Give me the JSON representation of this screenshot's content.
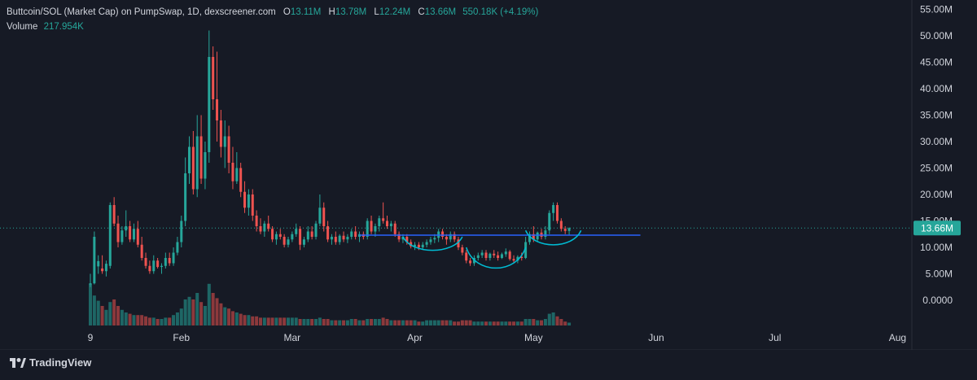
{
  "legend": {
    "title": "Buttcoin/SOL (Market Cap) on PumpSwap, 1D, dexscreener.com",
    "o_label": "O",
    "o_value": "13.11M",
    "h_label": "H",
    "h_value": "13.78M",
    "l_label": "L",
    "l_value": "12.24M",
    "c_label": "C",
    "c_value": "13.66M",
    "change": "550.18K (+4.19%)",
    "volume_label": "Volume",
    "volume_value": "217.954K"
  },
  "price_axis": {
    "ticks": [
      "55.00M",
      "50.00M",
      "45.00M",
      "40.00M",
      "35.00M",
      "30.00M",
      "25.00M",
      "20.00M",
      "15.00M",
      "10.00M",
      "5.00M",
      "0.0000"
    ],
    "tick_values": [
      55,
      50,
      45,
      40,
      35,
      30,
      25,
      20,
      15,
      10,
      5,
      0
    ],
    "current_label": "13.66M",
    "current_value": 13.66
  },
  "time_axis": {
    "labels": [
      "9",
      "Feb",
      "Mar",
      "Apr",
      "May",
      "Jun",
      "Jul",
      "Aug"
    ],
    "label_days": [
      0,
      23,
      51,
      82,
      112,
      143,
      173,
      204
    ]
  },
  "brand": {
    "name": "TradingView"
  },
  "colors": {
    "up": "#26a69a",
    "down": "#ef5350",
    "background": "#161a25",
    "hline": "#2962ff",
    "arc": "#00bcd4",
    "text": "#d1d4dc"
  },
  "chart_data": {
    "type": "candlestick",
    "ylim": [
      0,
      55
    ],
    "unit": "M",
    "horizontal_line": {
      "value": 12.3,
      "from_day": 68,
      "to_day": 139
    },
    "arcs": [
      {
        "from_day": 79,
        "to_day": 94,
        "top": 12.0,
        "bottom": 9.2
      },
      {
        "from_day": 95,
        "to_day": 110,
        "top": 10.0,
        "bottom": 5.4
      },
      {
        "from_day": 110,
        "to_day": 124,
        "top": 13.2,
        "bottom": 10.2
      }
    ],
    "candles": [
      [
        3.0,
        5.0,
        2.5,
        3.2,
        3.2
      ],
      [
        3.2,
        13,
        3.0,
        12.0,
        2.3
      ],
      [
        6.4,
        8.5,
        5.0,
        7.4,
        1.9
      ],
      [
        6.0,
        8.5,
        5.0,
        5.5,
        1.5
      ],
      [
        5.5,
        7.5,
        4.5,
        6.9,
        1.2
      ],
      [
        6.5,
        18.5,
        6.0,
        18.0,
        1.8
      ],
      [
        18.0,
        19.5,
        14.0,
        14.5,
        2.0
      ],
      [
        14.5,
        16,
        10.0,
        11.0,
        1.5
      ],
      [
        11.0,
        14,
        10.5,
        13.2,
        1.2
      ],
      [
        13.2,
        17,
        12.0,
        14.0,
        1.0
      ],
      [
        14.0,
        15,
        11.0,
        11.5,
        0.9
      ],
      [
        11.5,
        14.5,
        11.0,
        13.5,
        0.8
      ],
      [
        13.5,
        15,
        10.0,
        10.5,
        0.8
      ],
      [
        10.5,
        12,
        7.5,
        8.0,
        0.8
      ],
      [
        8.0,
        9,
        6.0,
        6.5,
        0.7
      ],
      [
        6.5,
        7.5,
        5.0,
        5.5,
        0.6
      ],
      [
        5.5,
        8.5,
        5.0,
        7.5,
        0.6
      ],
      [
        7.5,
        8,
        6.0,
        6.3,
        0.5
      ],
      [
        6.3,
        7,
        5.0,
        6.5,
        0.5
      ],
      [
        6.5,
        9,
        6.0,
        8.0,
        0.6
      ],
      [
        8.0,
        9,
        6.5,
        7.0,
        0.6
      ],
      [
        7.0,
        10,
        6.5,
        9.0,
        0.8
      ],
      [
        9.0,
        12,
        8.5,
        11.0,
        1.0
      ],
      [
        11.0,
        16,
        10.0,
        15.0,
        1.3
      ],
      [
        15.0,
        27,
        14.0,
        24.0,
        2.0
      ],
      [
        24.0,
        31,
        22.0,
        29.0,
        2.2
      ],
      [
        29.0,
        32,
        20.0,
        21.0,
        2.0
      ],
      [
        21.0,
        35,
        19.5,
        31.0,
        2.5
      ],
      [
        31.0,
        35,
        22.0,
        23.0,
        1.8
      ],
      [
        23.0,
        30,
        21.0,
        28.0,
        1.5
      ],
      [
        28.0,
        51,
        26.0,
        46.0,
        3.2
      ],
      [
        46.0,
        48,
        36.0,
        38.0,
        2.5
      ],
      [
        38.0,
        47,
        30.0,
        34.0,
        2.1
      ],
      [
        34.0,
        36,
        27.0,
        29.0,
        1.7
      ],
      [
        29.0,
        34,
        25.0,
        31.0,
        1.4
      ],
      [
        31.0,
        33,
        24.0,
        26.0,
        1.3
      ],
      [
        26.0,
        29,
        21.0,
        22.5,
        1.1
      ],
      [
        22.5,
        28,
        22.0,
        25.0,
        1.0
      ],
      [
        25.0,
        26,
        19.5,
        20.5,
        0.9
      ],
      [
        20.5,
        22.5,
        16.5,
        17.5,
        0.8
      ],
      [
        17.5,
        21,
        16.0,
        20.0,
        0.8
      ],
      [
        20.0,
        21,
        15.0,
        16.0,
        0.7
      ],
      [
        16.0,
        17,
        13.0,
        14.0,
        0.7
      ],
      [
        14.0,
        15.5,
        12.5,
        13.0,
        0.6
      ],
      [
        13.0,
        15,
        12.0,
        14.5,
        0.6
      ],
      [
        14.5,
        16,
        13.0,
        13.5,
        0.6
      ],
      [
        13.5,
        14,
        11.0,
        11.5,
        0.6
      ],
      [
        11.5,
        13,
        10.5,
        12.5,
        0.6
      ],
      [
        12.5,
        13.5,
        11.5,
        12.0,
        0.6
      ],
      [
        12.0,
        12.5,
        10.0,
        10.5,
        0.6
      ],
      [
        10.5,
        12,
        10.0,
        11.5,
        0.6
      ],
      [
        11.5,
        13,
        11.0,
        12.5,
        0.6
      ],
      [
        12.5,
        14.5,
        12.0,
        13.5,
        0.6
      ],
      [
        13.5,
        14,
        9.5,
        10.5,
        0.5
      ],
      [
        10.5,
        12,
        10.0,
        11.5,
        0.5
      ],
      [
        11.5,
        14,
        11.0,
        13.0,
        0.5
      ],
      [
        13.0,
        14,
        11.5,
        12.0,
        0.5
      ],
      [
        12.0,
        15,
        11.5,
        14.5,
        0.5
      ],
      [
        14.5,
        20,
        14.0,
        17.5,
        0.6
      ],
      [
        17.5,
        18.5,
        13.0,
        14.0,
        0.5
      ],
      [
        14.0,
        15,
        11.0,
        11.5,
        0.5
      ],
      [
        11.5,
        12.5,
        10.5,
        12.0,
        0.4
      ],
      [
        12.0,
        13,
        10.5,
        11.0,
        0.4
      ],
      [
        11.0,
        12.5,
        10.5,
        12.2,
        0.4
      ],
      [
        12.2,
        13,
        11.0,
        11.5,
        0.4
      ],
      [
        11.5,
        12.5,
        10.8,
        12.0,
        0.4
      ],
      [
        12.0,
        13.5,
        11.5,
        13.0,
        0.5
      ],
      [
        13.0,
        14,
        11.5,
        12.0,
        0.5
      ],
      [
        12.0,
        13,
        11.0,
        12.5,
        0.4
      ],
      [
        12.5,
        13,
        11.5,
        12.0,
        0.4
      ],
      [
        12.0,
        15.5,
        11.5,
        15.0,
        0.5
      ],
      [
        15.0,
        16,
        12.5,
        13.0,
        0.5
      ],
      [
        13.0,
        14.5,
        12.0,
        14.0,
        0.5
      ],
      [
        14.0,
        16,
        13.0,
        15.5,
        0.5
      ],
      [
        15.5,
        18.5,
        14.5,
        15.0,
        0.6
      ],
      [
        15.0,
        16,
        13.5,
        14.0,
        0.5
      ],
      [
        14.0,
        15,
        13.0,
        14.5,
        0.4
      ],
      [
        14.5,
        15,
        12.0,
        12.5,
        0.4
      ],
      [
        12.5,
        13,
        11.0,
        11.5,
        0.4
      ],
      [
        11.5,
        12.5,
        10.8,
        12.0,
        0.4
      ],
      [
        12.0,
        12.5,
        10.5,
        11.0,
        0.4
      ],
      [
        11.0,
        11.5,
        9.8,
        10.2,
        0.4
      ],
      [
        10.2,
        11,
        9.5,
        10.5,
        0.4
      ],
      [
        10.5,
        11,
        9.5,
        10.0,
        0.3
      ],
      [
        10.0,
        11,
        9.5,
        10.5,
        0.3
      ],
      [
        10.5,
        11.5,
        10.0,
        11.0,
        0.4
      ],
      [
        11.0,
        12,
        10.5,
        11.5,
        0.4
      ],
      [
        11.5,
        12.5,
        10.8,
        11.8,
        0.4
      ],
      [
        11.8,
        13.5,
        11.0,
        13.0,
        0.4
      ],
      [
        13.0,
        13.5,
        11.5,
        12.0,
        0.4
      ],
      [
        12.0,
        12.5,
        10.5,
        11.5,
        0.4
      ],
      [
        11.5,
        13,
        11.0,
        12.5,
        0.4
      ],
      [
        12.5,
        13,
        11.0,
        11.5,
        0.3
      ],
      [
        11.5,
        12,
        9.5,
        10.0,
        0.3
      ],
      [
        10.0,
        10.5,
        8.5,
        9.0,
        0.4
      ],
      [
        9.0,
        9.5,
        7.0,
        7.5,
        0.4
      ],
      [
        7.5,
        8,
        6.5,
        7.0,
        0.4
      ],
      [
        7.0,
        8.5,
        6.5,
        8.0,
        0.3
      ],
      [
        8.0,
        9,
        7.5,
        8.5,
        0.3
      ],
      [
        8.5,
        9.5,
        8.0,
        9.0,
        0.3
      ],
      [
        9.0,
        9.5,
        7.5,
        8.0,
        0.3
      ],
      [
        8.0,
        9,
        7.5,
        8.8,
        0.3
      ],
      [
        8.8,
        9.5,
        8.0,
        8.5,
        0.3
      ],
      [
        8.5,
        9.2,
        7.5,
        8.0,
        0.3
      ],
      [
        8.0,
        9,
        7.8,
        8.7,
        0.3
      ],
      [
        8.7,
        9.8,
        8.2,
        9.2,
        0.3
      ],
      [
        9.2,
        9.5,
        7.5,
        7.8,
        0.3
      ],
      [
        7.8,
        8.5,
        7.0,
        7.5,
        0.3
      ],
      [
        7.5,
        8.5,
        7.0,
        8.2,
        0.3
      ],
      [
        8.2,
        9,
        7.5,
        8.0,
        0.3
      ],
      [
        8.0,
        12,
        7.8,
        11.0,
        0.5
      ],
      [
        11.0,
        13,
        10.5,
        12.5,
        0.5
      ],
      [
        12.5,
        14,
        11.0,
        11.5,
        0.5
      ],
      [
        11.5,
        13,
        11.0,
        12.8,
        0.4
      ],
      [
        12.8,
        13.5,
        11.5,
        12.0,
        0.4
      ],
      [
        12.0,
        14,
        11.5,
        13.2,
        0.5
      ],
      [
        13.2,
        17,
        12.5,
        16.5,
        0.9
      ],
      [
        16.5,
        18.5,
        15.0,
        18.0,
        1.0
      ],
      [
        18.0,
        18.5,
        14.5,
        15.0,
        0.7
      ],
      [
        15.0,
        15.5,
        13.0,
        13.5,
        0.5
      ],
      [
        13.5,
        14,
        12.5,
        13.11,
        0.3
      ],
      [
        13.11,
        13.78,
        12.24,
        13.66,
        0.22
      ]
    ]
  }
}
